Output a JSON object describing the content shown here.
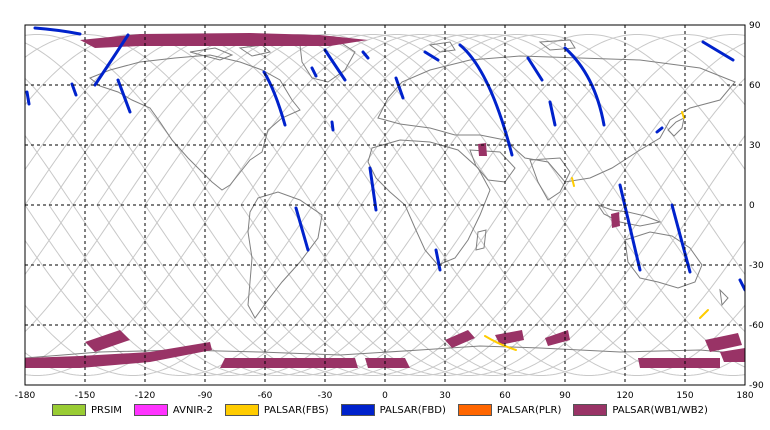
{
  "map": {
    "lon_range": [
      -180,
      180
    ],
    "lat_range": [
      -90,
      90
    ],
    "x_ticks": [
      "-180",
      "-150",
      "-120",
      "-90",
      "-60",
      "-30",
      "0",
      "30",
      "60",
      "90",
      "120",
      "150",
      "180"
    ],
    "y_ticks": [
      "90",
      "60",
      "30",
      "0",
      "-30",
      "-60",
      "-90"
    ],
    "grid": "dashed"
  },
  "legend": [
    {
      "label": "PRSIM",
      "color": "#99cc33"
    },
    {
      "label": "AVNIR-2",
      "color": "#ff33ff"
    },
    {
      "label": "PALSAR(FBS)",
      "color": "#ffcc00"
    },
    {
      "label": "PALSAR(FBD)",
      "color": "#0022cc"
    },
    {
      "label": "PALSAR(PLR)",
      "color": "#ff6600"
    },
    {
      "label": "PALSAR(WB1/WB2)",
      "color": "#993366"
    }
  ]
}
